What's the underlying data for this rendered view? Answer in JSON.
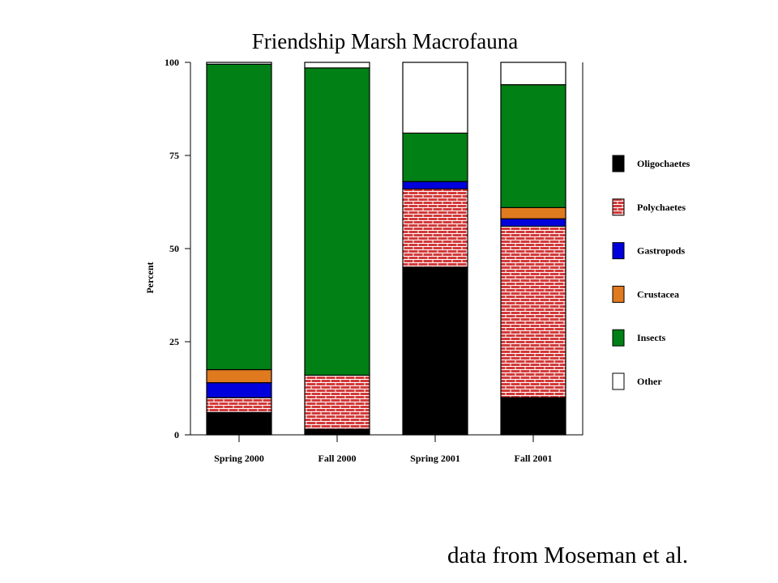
{
  "chart_data": {
    "type": "bar",
    "stacked": true,
    "title": "Friendship Marsh Macrofauna",
    "xlabel": "",
    "ylabel": "Percent",
    "ylim": [
      0,
      100
    ],
    "yticks": [
      "0",
      "25",
      "50",
      "75",
      "100"
    ],
    "grid": false,
    "legend_position": "right",
    "categories": [
      "Spring 2000",
      "Fall 2000",
      "Spring 2001",
      "Fall 2001"
    ],
    "series": [
      {
        "name": "Oligochaetes",
        "color": "#000000",
        "pattern": "solid",
        "values": [
          6,
          1.5,
          45,
          10
        ]
      },
      {
        "name": "Polychaetes",
        "color": "#cc3333",
        "pattern": "brick",
        "values": [
          4,
          14.5,
          21,
          46
        ]
      },
      {
        "name": "Gastropods",
        "color": "#0000dd",
        "pattern": "solid",
        "values": [
          4,
          0,
          2,
          2
        ]
      },
      {
        "name": "Crustacea",
        "color": "#e07a1f",
        "pattern": "solid",
        "values": [
          3.5,
          0,
          0,
          3
        ]
      },
      {
        "name": "Insects",
        "color": "#008015",
        "pattern": "solid",
        "values": [
          82,
          82.5,
          13,
          33
        ]
      },
      {
        "name": "Other",
        "color": "#ffffff",
        "pattern": "solid",
        "values": [
          0.5,
          1.5,
          19,
          6
        ]
      }
    ]
  },
  "caption": "data from Moseman et al."
}
